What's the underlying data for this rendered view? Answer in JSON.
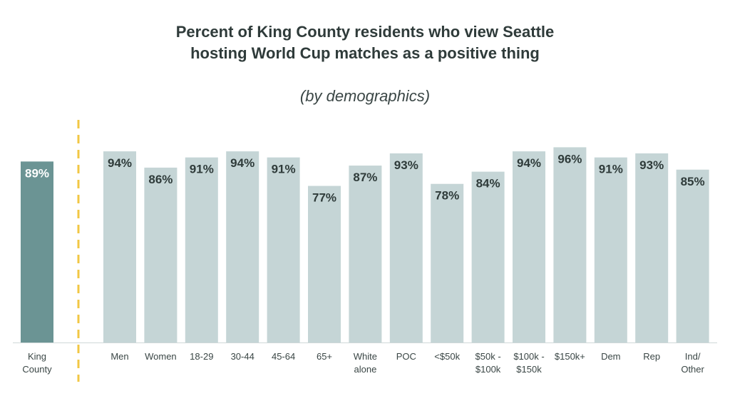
{
  "chart_data": {
    "type": "bar",
    "title_lines": [
      "Percent of King County residents who view Seattle",
      "hosting World Cup matches as a positive thing"
    ],
    "subtitle": "(by demographics)",
    "ylim": [
      0,
      100
    ],
    "xlabel": "",
    "ylabel": "",
    "grid": false,
    "colors": {
      "highlight": "#6b9494",
      "bar": "#c5d5d6",
      "divider": "#f2c744",
      "label_on_highlight": "#ffffff",
      "label": "#2f3b3a"
    },
    "categories": [
      [
        "King",
        "County"
      ],
      [
        "Men"
      ],
      [
        "Women"
      ],
      [
        "18-29"
      ],
      [
        "30-44"
      ],
      [
        "45-64"
      ],
      [
        "65+"
      ],
      [
        "White",
        "alone"
      ],
      [
        "POC"
      ],
      [
        "<$50k"
      ],
      [
        "$50k -",
        "$100k"
      ],
      [
        "$100k -",
        "$150k"
      ],
      [
        "$150k+"
      ],
      [
        "Dem"
      ],
      [
        "Rep"
      ],
      [
        "Ind/",
        "Other"
      ]
    ],
    "values": [
      89,
      94,
      86,
      91,
      94,
      91,
      77,
      87,
      93,
      78,
      84,
      94,
      96,
      91,
      93,
      85
    ],
    "value_labels": [
      "89%",
      "94%",
      "86%",
      "91%",
      "94%",
      "91%",
      "77%",
      "87%",
      "93%",
      "78%",
      "84%",
      "94%",
      "96%",
      "91%",
      "93%",
      "85%"
    ],
    "highlight_index": 0
  }
}
